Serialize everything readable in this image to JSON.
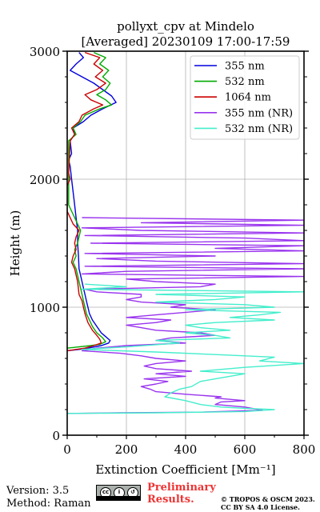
{
  "chart_data": {
    "type": "line",
    "title": "pollyxt_cpv at Mindelo",
    "subtitle": "[Averaged] 20230109 17:00-17:59",
    "xlabel": "Extinction Coefficient [Mm⁻¹]",
    "ylabel": "Height (m)",
    "xlim": [
      0,
      800
    ],
    "ylim": [
      0,
      3000
    ],
    "xticks": [
      "0",
      "200",
      "400",
      "600",
      "800"
    ],
    "yticks": [
      "0",
      "1000",
      "2000",
      "3000"
    ],
    "grid": true,
    "legend_position": "top-right",
    "series": [
      {
        "name": "355 nm",
        "color": "#0000dd",
        "points": [
          [
            0,
            660
          ],
          [
            40,
            670
          ],
          [
            80,
            685
          ],
          [
            115,
            700
          ],
          [
            140,
            720
          ],
          [
            145,
            740
          ],
          [
            130,
            770
          ],
          [
            115,
            800
          ],
          [
            100,
            850
          ],
          [
            85,
            900
          ],
          [
            75,
            950
          ],
          [
            70,
            1000
          ],
          [
            65,
            1050
          ],
          [
            60,
            1100
          ],
          [
            55,
            1150
          ],
          [
            50,
            1200
          ],
          [
            45,
            1250
          ],
          [
            40,
            1300
          ],
          [
            38,
            1400
          ],
          [
            35,
            1500
          ],
          [
            35,
            1600
          ],
          [
            30,
            1700
          ],
          [
            25,
            1800
          ],
          [
            20,
            1900
          ],
          [
            15,
            2000
          ],
          [
            10,
            2100
          ],
          [
            5,
            2150
          ],
          [
            15,
            2200
          ],
          [
            10,
            2300
          ],
          [
            25,
            2350
          ],
          [
            20,
            2400
          ],
          [
            55,
            2450
          ],
          [
            80,
            2500
          ],
          [
            120,
            2550
          ],
          [
            165,
            2600
          ],
          [
            150,
            2650
          ],
          [
            120,
            2700
          ],
          [
            90,
            2750
          ],
          [
            50,
            2800
          ],
          [
            10,
            2850
          ],
          [
            30,
            2900
          ],
          [
            55,
            2950
          ],
          [
            40,
            2990
          ]
        ]
      },
      {
        "name": "532 nm",
        "color": "#00aa00",
        "points": [
          [
            0,
            680
          ],
          [
            40,
            690
          ],
          [
            80,
            700
          ],
          [
            110,
            710
          ],
          [
            130,
            730
          ],
          [
            120,
            760
          ],
          [
            100,
            800
          ],
          [
            85,
            850
          ],
          [
            75,
            900
          ],
          [
            65,
            950
          ],
          [
            60,
            1000
          ],
          [
            55,
            1050
          ],
          [
            50,
            1100
          ],
          [
            45,
            1150
          ],
          [
            40,
            1200
          ],
          [
            35,
            1250
          ],
          [
            30,
            1300
          ],
          [
            20,
            1350
          ],
          [
            30,
            1400
          ],
          [
            25,
            1450
          ],
          [
            35,
            1500
          ],
          [
            40,
            1550
          ],
          [
            45,
            1600
          ],
          [
            35,
            1650
          ],
          [
            25,
            1700
          ],
          [
            15,
            1750
          ],
          [
            5,
            1800
          ],
          [
            5,
            2000
          ],
          [
            5,
            2300
          ],
          [
            30,
            2350
          ],
          [
            20,
            2400
          ],
          [
            45,
            2450
          ],
          [
            60,
            2500
          ],
          [
            110,
            2550
          ],
          [
            150,
            2580
          ],
          [
            130,
            2620
          ],
          [
            100,
            2660
          ],
          [
            130,
            2700
          ],
          [
            145,
            2750
          ],
          [
            120,
            2800
          ],
          [
            140,
            2850
          ],
          [
            110,
            2900
          ],
          [
            130,
            2950
          ],
          [
            90,
            2990
          ]
        ]
      },
      {
        "name": "1064 nm",
        "color": "#cc0000",
        "points": [
          [
            0,
            660
          ],
          [
            30,
            670
          ],
          [
            60,
            680
          ],
          [
            90,
            700
          ],
          [
            115,
            720
          ],
          [
            110,
            750
          ],
          [
            100,
            780
          ],
          [
            85,
            820
          ],
          [
            70,
            880
          ],
          [
            60,
            950
          ],
          [
            55,
            1000
          ],
          [
            50,
            1050
          ],
          [
            40,
            1100
          ],
          [
            35,
            1200
          ],
          [
            25,
            1300
          ],
          [
            15,
            1350
          ],
          [
            20,
            1400
          ],
          [
            30,
            1450
          ],
          [
            25,
            1500
          ],
          [
            30,
            1550
          ],
          [
            40,
            1600
          ],
          [
            20,
            1650
          ],
          [
            10,
            1700
          ],
          [
            0,
            1750
          ],
          [
            0,
            1950
          ],
          [
            10,
            2000
          ],
          [
            5,
            2050
          ],
          [
            10,
            2300
          ],
          [
            25,
            2350
          ],
          [
            15,
            2400
          ],
          [
            40,
            2450
          ],
          [
            50,
            2500
          ],
          [
            90,
            2550
          ],
          [
            120,
            2580
          ],
          [
            80,
            2620
          ],
          [
            60,
            2660
          ],
          [
            100,
            2700
          ],
          [
            130,
            2750
          ],
          [
            95,
            2800
          ],
          [
            120,
            2850
          ],
          [
            90,
            2900
          ],
          [
            110,
            2950
          ],
          [
            60,
            2990
          ]
        ]
      },
      {
        "name": "355 nm (NR)",
        "color": "#9933ee",
        "points": [
          [
            0,
            170
          ],
          [
            180,
            175
          ],
          [
            450,
            180
          ],
          [
            660,
            195
          ],
          [
            600,
            220
          ],
          [
            500,
            240
          ],
          [
            520,
            260
          ],
          [
            600,
            270
          ],
          [
            500,
            290
          ],
          [
            520,
            300
          ],
          [
            400,
            320
          ],
          [
            300,
            340
          ],
          [
            280,
            360
          ],
          [
            250,
            380
          ],
          [
            300,
            400
          ],
          [
            340,
            420
          ],
          [
            260,
            440
          ],
          [
            400,
            460
          ],
          [
            300,
            480
          ],
          [
            420,
            500
          ],
          [
            300,
            520
          ],
          [
            260,
            540
          ],
          [
            300,
            560
          ],
          [
            400,
            580
          ],
          [
            300,
            600
          ],
          [
            250,
            620
          ],
          [
            180,
            640
          ],
          [
            50,
            660
          ],
          [
            100,
            680
          ],
          [
            200,
            700
          ],
          [
            400,
            720
          ],
          [
            300,
            740
          ],
          [
            350,
            760
          ],
          [
            500,
            780
          ],
          [
            450,
            800
          ],
          [
            300,
            820
          ],
          [
            250,
            840
          ],
          [
            200,
            860
          ],
          [
            300,
            880
          ],
          [
            350,
            900
          ],
          [
            200,
            920
          ],
          [
            300,
            940
          ],
          [
            400,
            960
          ],
          [
            500,
            980
          ],
          [
            350,
            1000
          ],
          [
            400,
            1020
          ],
          [
            250,
            1040
          ],
          [
            200,
            1060
          ],
          [
            250,
            1080
          ],
          [
            250,
            1100
          ],
          [
            100,
            1120
          ],
          [
            60,
            1140
          ],
          [
            450,
            1160
          ],
          [
            500,
            1180
          ],
          [
            300,
            1200
          ],
          [
            200,
            1220
          ],
          [
            800,
            1240
          ],
          [
            50,
            1260
          ],
          [
            200,
            1280
          ],
          [
            800,
            1300
          ],
          [
            60,
            1320
          ],
          [
            800,
            1340
          ],
          [
            300,
            1360
          ],
          [
            100,
            1380
          ],
          [
            500,
            1400
          ],
          [
            60,
            1420
          ],
          [
            800,
            1440
          ],
          [
            500,
            1460
          ],
          [
            800,
            1480
          ],
          [
            80,
            1500
          ],
          [
            800,
            1520
          ],
          [
            600,
            1540
          ],
          [
            60,
            1560
          ],
          [
            800,
            1580
          ],
          [
            250,
            1600
          ],
          [
            50,
            1620
          ],
          [
            800,
            1640
          ],
          [
            250,
            1660
          ],
          [
            800,
            1680
          ],
          [
            50,
            1700
          ]
        ]
      },
      {
        "name": "532 nm (NR)",
        "color": "#44eecc",
        "points": [
          [
            0,
            170
          ],
          [
            300,
            175
          ],
          [
            600,
            185
          ],
          [
            700,
            200
          ],
          [
            600,
            210
          ],
          [
            520,
            220
          ],
          [
            450,
            240
          ],
          [
            400,
            270
          ],
          [
            330,
            300
          ],
          [
            350,
            330
          ],
          [
            380,
            360
          ],
          [
            420,
            380
          ],
          [
            450,
            420
          ],
          [
            500,
            440
          ],
          [
            600,
            480
          ],
          [
            450,
            500
          ],
          [
            600,
            530
          ],
          [
            800,
            560
          ],
          [
            650,
            580
          ],
          [
            700,
            610
          ],
          [
            500,
            630
          ],
          [
            300,
            650
          ],
          [
            50,
            670
          ],
          [
            200,
            690
          ],
          [
            380,
            720
          ],
          [
            300,
            740
          ],
          [
            550,
            760
          ],
          [
            500,
            780
          ],
          [
            400,
            800
          ],
          [
            550,
            820
          ],
          [
            450,
            840
          ],
          [
            400,
            860
          ],
          [
            500,
            880
          ],
          [
            700,
            900
          ],
          [
            550,
            920
          ],
          [
            650,
            940
          ],
          [
            720,
            960
          ],
          [
            400,
            980
          ],
          [
            700,
            1000
          ],
          [
            600,
            1020
          ],
          [
            300,
            1040
          ],
          [
            500,
            1060
          ],
          [
            600,
            1080
          ],
          [
            300,
            1100
          ],
          [
            800,
            1120
          ],
          [
            50,
            1140
          ],
          [
            200,
            1160
          ],
          [
            60,
            1180
          ]
        ]
      }
    ]
  },
  "footer": {
    "version": "Version: 3.5",
    "method": "Method: Raman",
    "preliminary_line1": "Preliminary",
    "preliminary_line2": "Results.",
    "copyright_line1": "© TROPOS & OSCM 2023.",
    "copyright_line2": "CC BY SA 4.0 License.",
    "license_badge_icons": [
      "cc-icon",
      "by-icon",
      "sa-icon"
    ]
  }
}
